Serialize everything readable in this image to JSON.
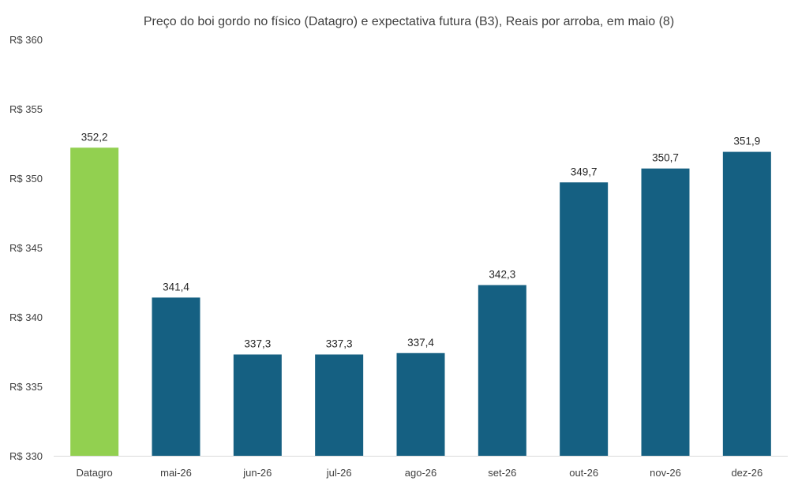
{
  "chart_data": {
    "type": "bar",
    "title": "Preço do boi gordo no físico (Datagro)  e expectativa futura (B3), Reais por arroba, em maio (8)",
    "xlabel": "",
    "ylabel": "",
    "categories": [
      "Datagro",
      "mai-26",
      "jun-26",
      "jul-26",
      "ago-26",
      "set-26",
      "out-26",
      "nov-26",
      "dez-26"
    ],
    "values": [
      352.2,
      341.4,
      337.3,
      337.3,
      337.4,
      342.3,
      349.7,
      350.7,
      351.9
    ],
    "value_labels": [
      "352,2",
      "341,4",
      "337,3",
      "337,3",
      "337,4",
      "342,3",
      "349,7",
      "350,7",
      "351,9"
    ],
    "ylim": [
      330,
      360
    ],
    "yticks": [
      330,
      335,
      340,
      345,
      350,
      355,
      360
    ],
    "ytick_labels": [
      "R$ 330",
      "R$ 335",
      "R$ 340",
      "R$ 345",
      "R$ 350",
      "R$ 355",
      "R$ 360"
    ],
    "grid": false,
    "legend": "none",
    "colors": {
      "highlight": "#92D050",
      "bars": "#156082",
      "axis": "#D9D9D9"
    }
  }
}
